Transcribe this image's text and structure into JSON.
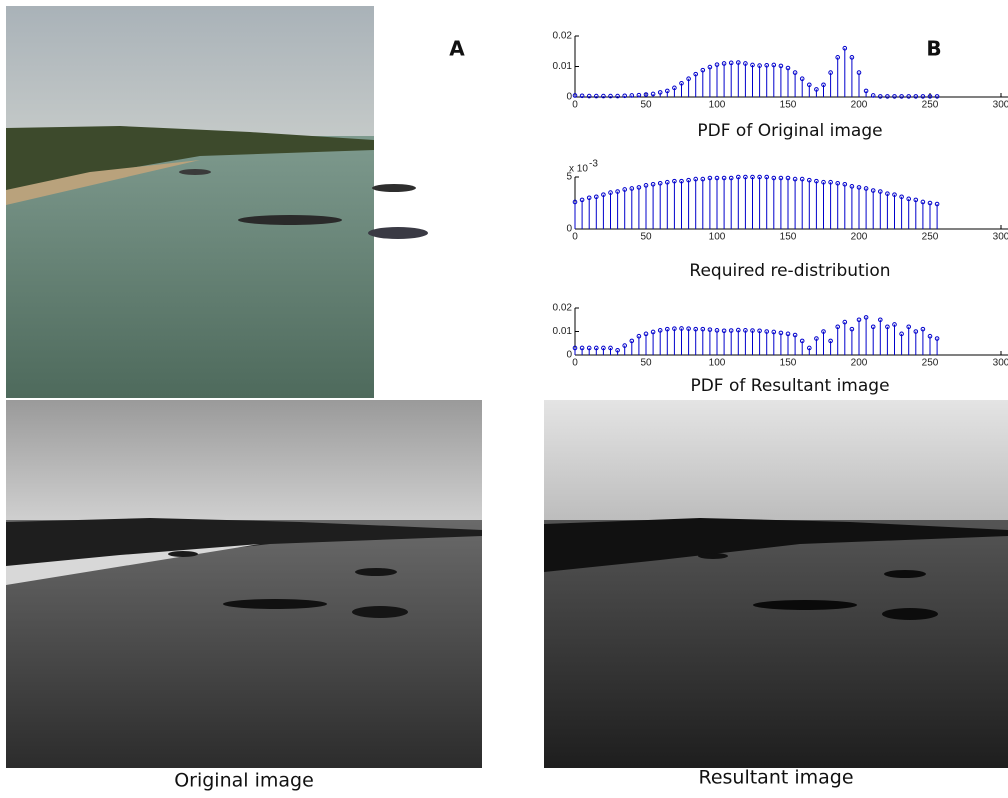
{
  "figure": {
    "label_a": "A",
    "label_b": "B",
    "caption_left": "Original image",
    "caption_right": "Resultant image"
  },
  "chart_data": [
    {
      "type": "stem",
      "title": "PDF of Original image",
      "color": "#0000cc",
      "x": [
        0,
        5,
        10,
        15,
        20,
        25,
        30,
        35,
        40,
        45,
        50,
        55,
        60,
        65,
        70,
        75,
        80,
        85,
        90,
        95,
        100,
        105,
        110,
        115,
        120,
        125,
        130,
        135,
        140,
        145,
        150,
        155,
        160,
        165,
        170,
        175,
        180,
        185,
        190,
        195,
        200,
        205,
        210,
        215,
        220,
        225,
        230,
        235,
        240,
        245,
        250,
        255
      ],
      "values": [
        0.0005,
        0.0004,
        0.0003,
        0.0003,
        0.0003,
        0.0003,
        0.0003,
        0.0004,
        0.0005,
        0.0006,
        0.0008,
        0.001,
        0.0015,
        0.002,
        0.003,
        0.0045,
        0.006,
        0.0075,
        0.0088,
        0.0098,
        0.0106,
        0.011,
        0.0112,
        0.0113,
        0.011,
        0.0105,
        0.0103,
        0.0104,
        0.0105,
        0.0102,
        0.0095,
        0.008,
        0.006,
        0.004,
        0.0025,
        0.004,
        0.008,
        0.013,
        0.016,
        0.013,
        0.008,
        0.002,
        0.0005,
        0.0002,
        0.0002,
        0.0002,
        0.0002,
        0.0002,
        0.0002,
        0.0002,
        0.0002,
        0.0002
      ],
      "xlim": [
        0,
        300
      ],
      "xticks": [
        0,
        50,
        100,
        150,
        200,
        250,
        300
      ],
      "ylim": [
        0,
        0.02
      ],
      "yticks": [
        0,
        0.01,
        0.02
      ]
    },
    {
      "type": "stem",
      "title": "Required re-distribution",
      "color": "#0000cc",
      "y_scale": {
        "base": "x 10",
        "exponent": "-3"
      },
      "x": [
        0,
        5,
        10,
        15,
        20,
        25,
        30,
        35,
        40,
        45,
        50,
        55,
        60,
        65,
        70,
        75,
        80,
        85,
        90,
        95,
        100,
        105,
        110,
        115,
        120,
        125,
        130,
        135,
        140,
        145,
        150,
        155,
        160,
        165,
        170,
        175,
        180,
        185,
        190,
        195,
        200,
        205,
        210,
        215,
        220,
        225,
        230,
        235,
        240,
        245,
        250,
        255
      ],
      "values": [
        0.0026,
        0.0028,
        0.003,
        0.0031,
        0.0033,
        0.0035,
        0.0036,
        0.0038,
        0.0039,
        0.004,
        0.0042,
        0.0043,
        0.0044,
        0.0045,
        0.0046,
        0.0046,
        0.0047,
        0.0048,
        0.0048,
        0.0049,
        0.0049,
        0.0049,
        0.0049,
        0.005,
        0.005,
        0.005,
        0.005,
        0.005,
        0.0049,
        0.0049,
        0.0049,
        0.0048,
        0.0048,
        0.0047,
        0.0046,
        0.0045,
        0.0045,
        0.0044,
        0.0043,
        0.0041,
        0.004,
        0.0039,
        0.0037,
        0.0036,
        0.0034,
        0.0033,
        0.0031,
        0.0029,
        0.0028,
        0.0026,
        0.0025,
        0.0024
      ],
      "xlim": [
        0,
        300
      ],
      "xticks": [
        0,
        50,
        100,
        150,
        200,
        250,
        300
      ],
      "ylim": [
        0,
        0.005
      ],
      "yticks": [
        0,
        {
          "value": 0.005,
          "label": "5"
        }
      ]
    },
    {
      "type": "stem",
      "title": "PDF of Resultant image",
      "color": "#0000cc",
      "x": [
        0,
        5,
        10,
        15,
        20,
        25,
        30,
        35,
        40,
        45,
        50,
        55,
        60,
        65,
        70,
        75,
        80,
        85,
        90,
        95,
        100,
        105,
        110,
        115,
        120,
        125,
        130,
        135,
        140,
        145,
        150,
        155,
        160,
        165,
        170,
        175,
        180,
        185,
        190,
        195,
        200,
        205,
        210,
        215,
        220,
        225,
        230,
        235,
        240,
        245,
        250,
        255
      ],
      "values": [
        0.003,
        0.003,
        0.003,
        0.003,
        0.003,
        0.003,
        0.002,
        0.004,
        0.006,
        0.008,
        0.009,
        0.0098,
        0.0105,
        0.011,
        0.0112,
        0.0113,
        0.0112,
        0.011,
        0.011,
        0.0108,
        0.0105,
        0.0103,
        0.0104,
        0.0106,
        0.0105,
        0.0104,
        0.0103,
        0.01,
        0.0098,
        0.0094,
        0.009,
        0.0085,
        0.006,
        0.003,
        0.007,
        0.01,
        0.006,
        0.012,
        0.014,
        0.011,
        0.015,
        0.016,
        0.012,
        0.015,
        0.012,
        0.013,
        0.009,
        0.012,
        0.01,
        0.011,
        0.008,
        0.007
      ],
      "xlim": [
        0,
        300
      ],
      "xticks": [
        0,
        50,
        100,
        150,
        200,
        250,
        300
      ],
      "ylim": [
        0,
        0.02
      ],
      "yticks": [
        0,
        0.01,
        0.02
      ]
    }
  ]
}
